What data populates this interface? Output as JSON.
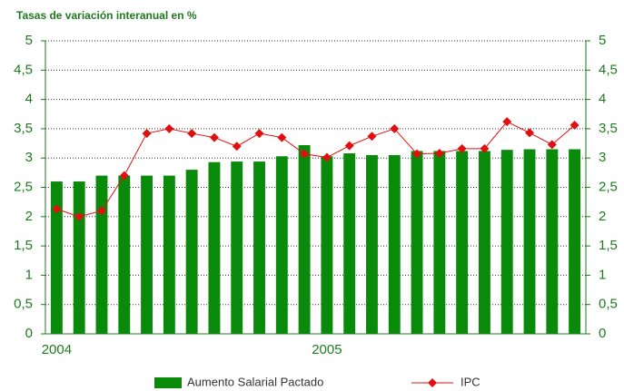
{
  "chart_data": {
    "type": "bar-line",
    "title": "Tasas de variación interanual en %",
    "categories": [
      "2004",
      null,
      null,
      null,
      null,
      null,
      null,
      null,
      null,
      null,
      null,
      null,
      "2005",
      null,
      null,
      null,
      null,
      null,
      null,
      null,
      null,
      null,
      null,
      null
    ],
    "series": [
      {
        "name": "Aumento Salarial Pactado",
        "type": "bar",
        "color": "#0a8a0a",
        "values": [
          2.6,
          2.6,
          2.7,
          2.7,
          2.7,
          2.7,
          2.8,
          2.93,
          2.94,
          2.94,
          3.03,
          3.22,
          3.03,
          3.08,
          3.05,
          3.05,
          3.12,
          3.12,
          3.12,
          3.12,
          3.14,
          3.15,
          3.15,
          3.15
        ]
      },
      {
        "name": "IPC",
        "type": "line",
        "color": "#e01010",
        "values": [
          2.13,
          2.0,
          2.1,
          2.7,
          3.42,
          3.5,
          3.42,
          3.35,
          3.2,
          3.42,
          3.35,
          3.07,
          3.01,
          3.21,
          3.37,
          3.5,
          3.07,
          3.08,
          3.16,
          3.16,
          3.62,
          3.43,
          3.23,
          3.56
        ]
      }
    ],
    "ylim": [
      0,
      5
    ],
    "yticks": [
      0,
      {
        "value": 0.5,
        "label": "0,5"
      },
      1,
      {
        "value": 1.5,
        "label": "1,5"
      },
      2,
      {
        "value": 2.5,
        "label": "2,5"
      },
      3,
      {
        "value": 3.5,
        "label": "3,5"
      },
      4,
      {
        "value": 4.5,
        "label": "4,5"
      },
      5
    ],
    "y2lim": [
      0,
      5
    ],
    "y2ticks": [
      0,
      {
        "value": 0.5,
        "label": "0,5"
      },
      1,
      {
        "value": 1.5,
        "label": "1,5"
      },
      2,
      {
        "value": 2.5,
        "label": "2,5"
      },
      3,
      {
        "value": 3.5,
        "label": "3,5"
      },
      4,
      {
        "value": 4.5,
        "label": "4,5"
      },
      5
    ],
    "grid": true
  }
}
